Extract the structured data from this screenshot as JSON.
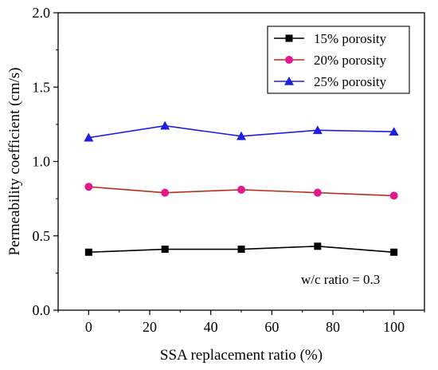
{
  "chart_data": {
    "type": "line",
    "xlabel": "SSA replacement ratio (%)",
    "ylabel": "Permeability coefficient (cm/s)",
    "xlim": [
      -10,
      110
    ],
    "ylim": [
      0.0,
      2.0
    ],
    "xticks": [
      0,
      20,
      40,
      60,
      80,
      100
    ],
    "yticks": [
      0.0,
      0.5,
      1.0,
      1.5,
      2.0
    ],
    "x": [
      0,
      25,
      50,
      75,
      100
    ],
    "grid": false,
    "legend_position": "top-right",
    "series": [
      {
        "name": "15% porosity",
        "values": [
          0.39,
          0.41,
          0.41,
          0.43,
          0.39
        ],
        "color": "#000000",
        "marker": "square"
      },
      {
        "name": "20% porosity",
        "values": [
          0.83,
          0.79,
          0.81,
          0.79,
          0.77
        ],
        "color": "#b5311e",
        "marker_color": "#e0198c",
        "marker": "circle"
      },
      {
        "name": "25% porosity",
        "values": [
          1.16,
          1.24,
          1.17,
          1.21,
          1.2
        ],
        "color": "#1f1fe0",
        "marker": "triangle"
      }
    ],
    "annotations": [
      {
        "text": "w/c ratio = 0.3",
        "position": "bottom-right"
      }
    ]
  }
}
